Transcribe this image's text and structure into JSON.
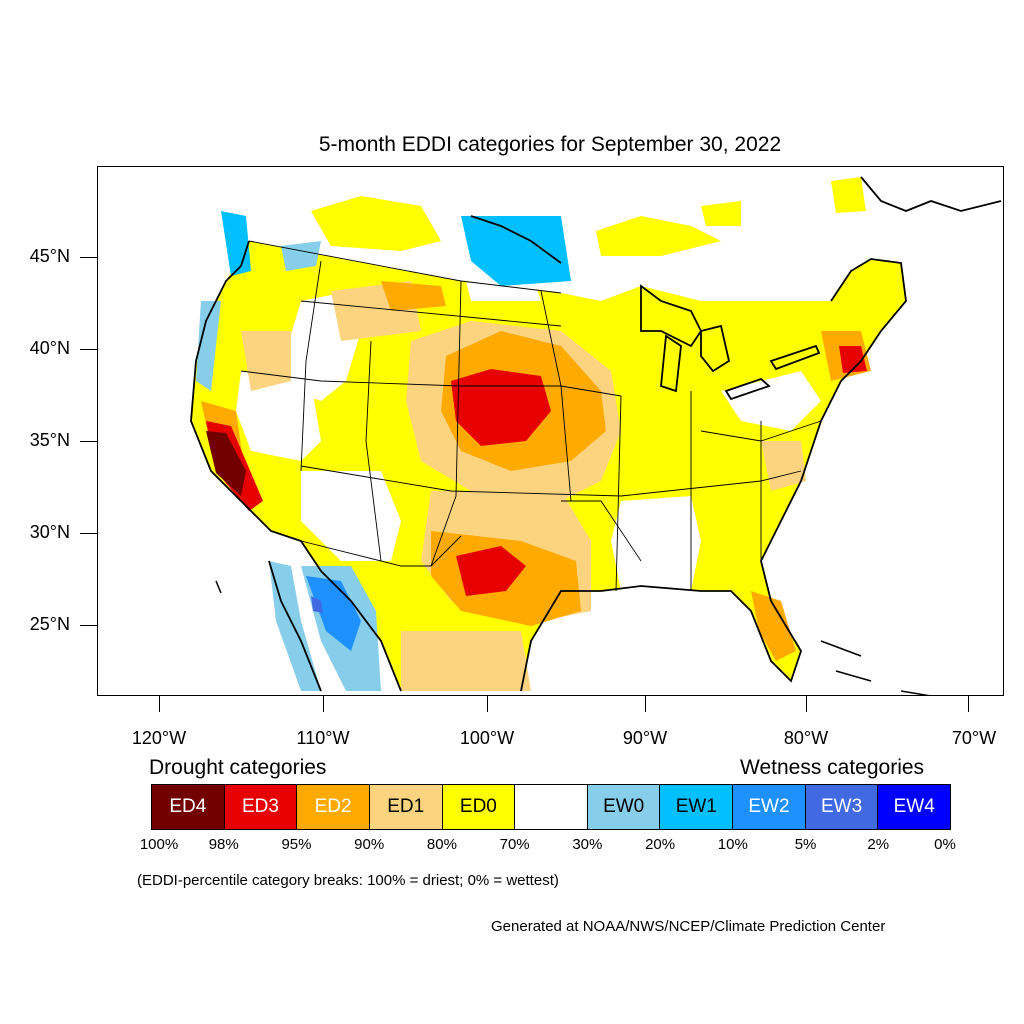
{
  "title": "5-month EDDI categories for September 30, 2022",
  "lat_labels": [
    "45°N",
    "40°N",
    "35°N",
    "30°N",
    "25°N"
  ],
  "lon_labels": [
    "120°W",
    "110°W",
    "100°W",
    "90°W",
    "80°W",
    "70°W"
  ],
  "legend": {
    "drought_heading": "Drought categories",
    "wetness_heading": "Wetness categories",
    "categories": [
      {
        "label": "ED4",
        "color": "#730000",
        "text_color": "#ffffff"
      },
      {
        "label": "ED3",
        "color": "#e60000",
        "text_color": "#ffffff"
      },
      {
        "label": "ED2",
        "color": "#ffaa00",
        "text_color": "#ffffff"
      },
      {
        "label": "ED1",
        "color": "#fcd37f",
        "text_color": "#000000"
      },
      {
        "label": "ED0",
        "color": "#ffff00",
        "text_color": "#000000"
      },
      {
        "label": "",
        "color": "#ffffff",
        "text_color": "#000000"
      },
      {
        "label": "EW0",
        "color": "#87ceeb",
        "text_color": "#000000"
      },
      {
        "label": "EW1",
        "color": "#00bfff",
        "text_color": "#000000"
      },
      {
        "label": "EW2",
        "color": "#1e90ff",
        "text_color": "#ffffff"
      },
      {
        "label": "EW3",
        "color": "#4169e1",
        "text_color": "#ffffff"
      },
      {
        "label": "EW4",
        "color": "#0000ff",
        "text_color": "#ffffff"
      }
    ],
    "breaks": [
      "100%",
      "98%",
      "95%",
      "90%",
      "80%",
      "70%",
      "30%",
      "20%",
      "10%",
      "5%",
      "2%",
      "0%"
    ]
  },
  "note": "(EDDI-percentile category breaks: 100% = driest; 0% = wettest)",
  "credit": "Generated at NOAA/NWS/NCEP/Climate Prediction Center"
}
